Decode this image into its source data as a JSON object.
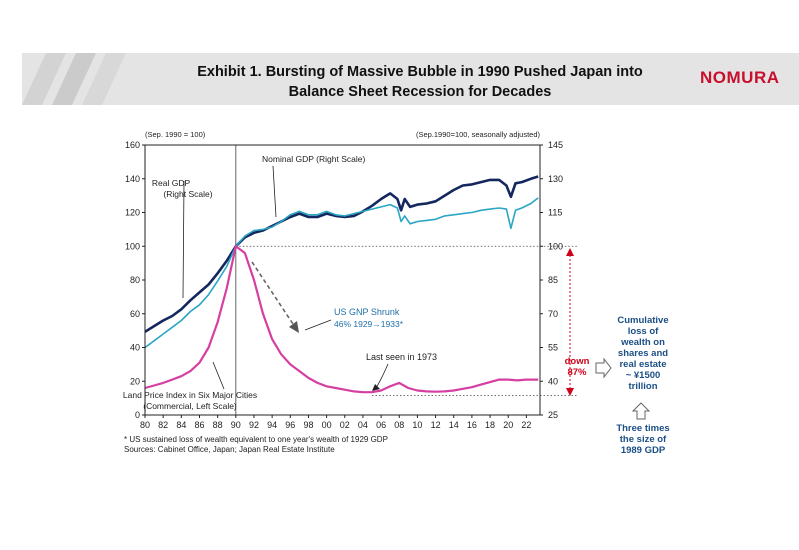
{
  "header": {
    "title_line1": "Exhibit 1. Bursting of Massive Bubble in 1990 Pushed Japan into",
    "title_line2": "Balance Sheet Recession for Decades",
    "logo": "NOMURA",
    "colors": {
      "banner": "#e4e4e4",
      "logo": "#c8102e"
    }
  },
  "chart_data": {
    "type": "line",
    "left_axis": {
      "caption": "(Sep. 1990 = 100)",
      "range": [
        0,
        160
      ],
      "ticks": [
        0,
        20,
        40,
        60,
        80,
        100,
        120,
        140,
        160
      ]
    },
    "right_axis": {
      "caption": "(Sep.1990=100, seasonally adjusted)",
      "range": [
        25,
        145
      ],
      "ticks": [
        25,
        40,
        55,
        70,
        85,
        100,
        115,
        130,
        145
      ]
    },
    "x_axis": {
      "range": [
        1980,
        2023.5
      ],
      "tick_labels": [
        "80",
        "82",
        "84",
        "86",
        "88",
        "90",
        "92",
        "94",
        "96",
        "98",
        "00",
        "02",
        "04",
        "06",
        "08",
        "10",
        "12",
        "14",
        "16",
        "18",
        "20",
        "22"
      ]
    },
    "reference_lines": {
      "vertical_year": 1990,
      "right_axis_level": 100,
      "left_axis_level": 11.5
    },
    "series": [
      {
        "name": "Nominal GDP (Right Scale)",
        "axis": "right",
        "color": "#14275e",
        "points": [
          [
            1980,
            62
          ],
          [
            1981,
            64.5
          ],
          [
            1982,
            67
          ],
          [
            1983,
            69
          ],
          [
            1984,
            72
          ],
          [
            1985,
            76
          ],
          [
            1986,
            79.5
          ],
          [
            1987,
            83
          ],
          [
            1988,
            88
          ],
          [
            1989,
            93.5
          ],
          [
            1990,
            100
          ],
          [
            1991,
            104
          ],
          [
            1992,
            106
          ],
          [
            1993,
            107
          ],
          [
            1994,
            109
          ],
          [
            1995,
            111
          ],
          [
            1996,
            113
          ],
          [
            1997,
            114.5
          ],
          [
            1998,
            113
          ],
          [
            1999,
            113
          ],
          [
            2000,
            114.5
          ],
          [
            2001,
            113.5
          ],
          [
            2002,
            113
          ],
          [
            2003,
            113.5
          ],
          [
            2004,
            115.5
          ],
          [
            2005,
            118
          ],
          [
            2006,
            121
          ],
          [
            2007,
            123.5
          ],
          [
            2007.8,
            121
          ],
          [
            2008.2,
            116
          ],
          [
            2008.6,
            121
          ],
          [
            2009.2,
            117.5
          ],
          [
            2010,
            118.5
          ],
          [
            2011,
            119
          ],
          [
            2012,
            120
          ],
          [
            2013,
            122.5
          ],
          [
            2014,
            125
          ],
          [
            2015,
            127
          ],
          [
            2016,
            127.5
          ],
          [
            2017,
            128.5
          ],
          [
            2018,
            129.5
          ],
          [
            2019,
            129.5
          ],
          [
            2019.8,
            127
          ],
          [
            2020.3,
            122
          ],
          [
            2020.8,
            128
          ],
          [
            2021.5,
            128.5
          ],
          [
            2022.5,
            130
          ],
          [
            2023.3,
            131
          ]
        ]
      },
      {
        "name": "Real GDP (Right Scale)",
        "axis": "right",
        "color": "#2aa6c4",
        "points": [
          [
            1980,
            55
          ],
          [
            1981,
            58
          ],
          [
            1982,
            61
          ],
          [
            1983,
            64
          ],
          [
            1984,
            67
          ],
          [
            1985,
            71
          ],
          [
            1986,
            74
          ],
          [
            1987,
            78.5
          ],
          [
            1988,
            84.5
          ],
          [
            1989,
            91
          ],
          [
            1990,
            100
          ],
          [
            1991,
            104.5
          ],
          [
            1992,
            107
          ],
          [
            1993,
            107.5
          ],
          [
            1994,
            108.5
          ],
          [
            1995,
            111
          ],
          [
            1996,
            114
          ],
          [
            1997,
            115.5
          ],
          [
            1998,
            114
          ],
          [
            1999,
            114
          ],
          [
            2000,
            115.5
          ],
          [
            2001,
            114
          ],
          [
            2002,
            113.5
          ],
          [
            2003,
            114.5
          ],
          [
            2004,
            115.5
          ],
          [
            2005,
            116.5
          ],
          [
            2006,
            117.5
          ],
          [
            2007,
            118.5
          ],
          [
            2007.8,
            117
          ],
          [
            2008.2,
            111
          ],
          [
            2008.6,
            113.5
          ],
          [
            2009.2,
            110
          ],
          [
            2010,
            111
          ],
          [
            2011,
            111.5
          ],
          [
            2012,
            112
          ],
          [
            2013,
            113.5
          ],
          [
            2014,
            114
          ],
          [
            2015,
            114.5
          ],
          [
            2016,
            115
          ],
          [
            2017,
            116
          ],
          [
            2018,
            116.5
          ],
          [
            2019,
            117
          ],
          [
            2019.8,
            116.5
          ],
          [
            2020.3,
            108
          ],
          [
            2020.8,
            116
          ],
          [
            2021.5,
            117
          ],
          [
            2022.5,
            119
          ],
          [
            2023.3,
            121.5
          ]
        ]
      },
      {
        "name": "Land Price Index in Six Major Cities (Commercial, Left Scale)",
        "axis": "left",
        "color": "#d63fa2",
        "points": [
          [
            1980,
            16
          ],
          [
            1981,
            17.5
          ],
          [
            1982,
            19
          ],
          [
            1983,
            21
          ],
          [
            1984,
            23
          ],
          [
            1985,
            26
          ],
          [
            1986,
            31
          ],
          [
            1987,
            40
          ],
          [
            1988,
            55
          ],
          [
            1989,
            75
          ],
          [
            1990,
            100
          ],
          [
            1991,
            96
          ],
          [
            1992,
            80
          ],
          [
            1993,
            60
          ],
          [
            1994,
            45
          ],
          [
            1995,
            36
          ],
          [
            1996,
            30
          ],
          [
            1997,
            26
          ],
          [
            1998,
            22
          ],
          [
            1999,
            19
          ],
          [
            2000,
            17
          ],
          [
            2001,
            16
          ],
          [
            2002,
            15
          ],
          [
            2003,
            14
          ],
          [
            2004,
            13.5
          ],
          [
            2005,
            13.5
          ],
          [
            2006,
            14.5
          ],
          [
            2007,
            17
          ],
          [
            2008,
            19
          ],
          [
            2009,
            16
          ],
          [
            2010,
            14.5
          ],
          [
            2011,
            14
          ],
          [
            2012,
            13.8
          ],
          [
            2013,
            14
          ],
          [
            2014,
            14.5
          ],
          [
            2015,
            15.5
          ],
          [
            2016,
            16.5
          ],
          [
            2017,
            18
          ],
          [
            2018,
            19.5
          ],
          [
            2019,
            21
          ],
          [
            2020,
            21
          ],
          [
            2021,
            20.5
          ],
          [
            2022,
            21
          ],
          [
            2023.3,
            21
          ]
        ]
      }
    ],
    "annotations": {
      "real_gdp": [
        "Real GDP",
        "(Right Scale)"
      ],
      "nominal_gdp": "Nominal GDP (Right Scale)",
      "us_gnp_line1": "US GNP Shrunk",
      "us_gnp_line2": "46% 1929→1933*",
      "last_seen": "Last seen in 1973",
      "land_price_line1": "Land Price Index in Six Major Cities",
      "land_price_line2": "(Commercial, Left Scale)",
      "down_line1": "down",
      "down_line2": "87%"
    },
    "annotation_colors": {
      "us_gnp": "#1f6fa8",
      "down": "#d0021b",
      "side_text": "#1b4f86"
    }
  },
  "footnotes": {
    "line1": "* US sustained loss of wealth equivalent  to one year's wealth of 1929 GDP",
    "line2": "Sources: Cabinet Office, Japan; Japan Real Estate Institute"
  },
  "side_panel": {
    "cumulative_lines": [
      "Cumulative",
      "loss of",
      "wealth on",
      "shares and",
      "real estate",
      "~ ¥1500",
      "trillion"
    ],
    "three_times_lines": [
      "Three times",
      "the size of",
      "1989 GDP"
    ]
  }
}
